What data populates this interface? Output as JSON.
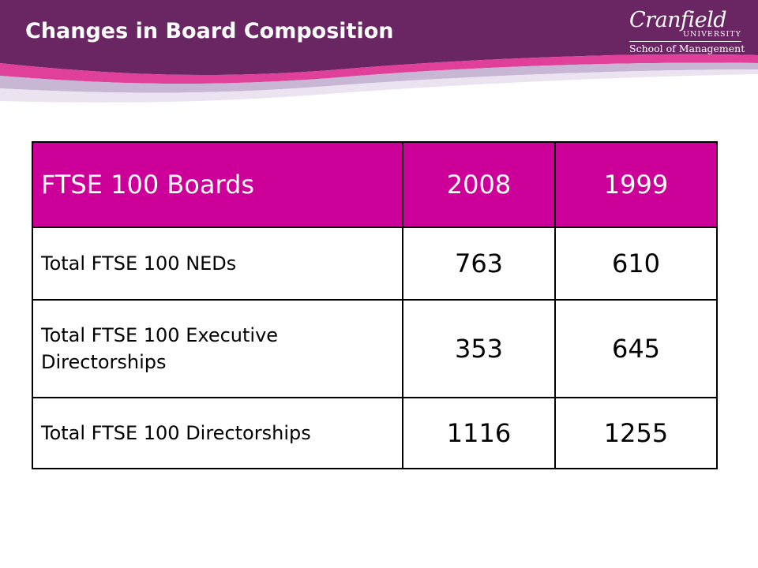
{
  "slide": {
    "title": "Changes in Board Composition"
  },
  "logo": {
    "name": "Cranfield",
    "university": "UNIVERSITY",
    "school": "School of Management"
  },
  "colors": {
    "header_purple": "#6a2563",
    "table_header_magenta": "#cc0099",
    "swoosh_pink": "#e0409a"
  },
  "table": {
    "headers": [
      "FTSE 100 Boards",
      "2008",
      "1999"
    ],
    "rows": [
      {
        "label": "Total FTSE 100 NEDs",
        "v2008": "763",
        "v1999": "610"
      },
      {
        "label": "Total FTSE 100 Executive Directorships",
        "v2008": "353",
        "v1999": "645"
      },
      {
        "label": "Total FTSE 100 Directorships",
        "v2008": "1116",
        "v1999": "1255"
      }
    ]
  }
}
